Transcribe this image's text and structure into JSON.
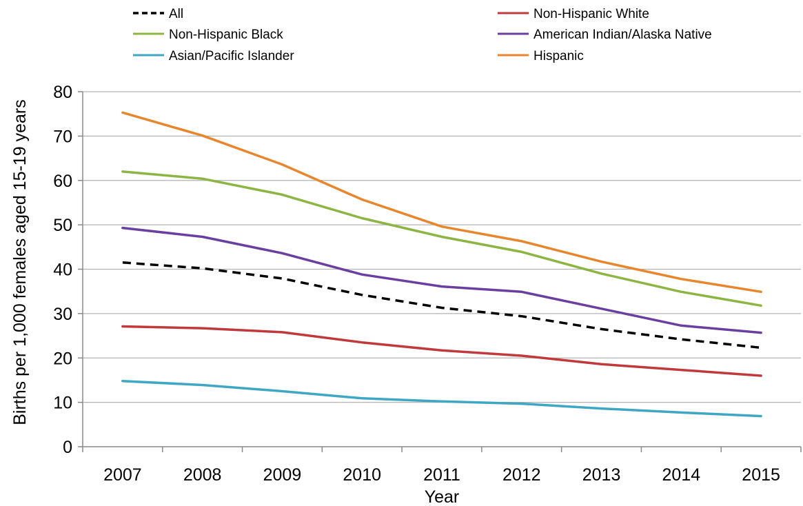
{
  "chart_data": {
    "type": "line",
    "title": "",
    "xlabel": "Year",
    "ylabel": "Births per 1,000 females aged 15-19 years",
    "x": [
      "2007",
      "2008",
      "2009",
      "2010",
      "2011",
      "2012",
      "2013",
      "2014",
      "2015"
    ],
    "ylim": [
      0,
      80
    ],
    "yticks": [
      0,
      10,
      20,
      30,
      40,
      50,
      60,
      70,
      80
    ],
    "grid": "horizontal",
    "legend_position": "top",
    "series": [
      {
        "name": "All",
        "color": "#000000",
        "style": "dashed",
        "values": [
          41.5,
          40.2,
          37.9,
          34.2,
          31.3,
          29.4,
          26.5,
          24.2,
          22.3
        ]
      },
      {
        "name": "Non-Hispanic White",
        "color": "#C0393B",
        "style": "solid",
        "values": [
          27.1,
          26.7,
          25.8,
          23.5,
          21.7,
          20.5,
          18.6,
          17.3,
          16.0
        ]
      },
      {
        "name": "Non-Hispanic Black",
        "color": "#8CB543",
        "style": "solid",
        "values": [
          62.0,
          60.4,
          56.8,
          51.5,
          47.3,
          43.9,
          39.0,
          34.9,
          31.8
        ]
      },
      {
        "name": "American Indian/Alaska Native",
        "color": "#6A3FA0",
        "style": "solid",
        "values": [
          49.3,
          47.3,
          43.6,
          38.8,
          36.1,
          34.9,
          31.1,
          27.3,
          25.7
        ]
      },
      {
        "name": "Asian/Pacific Islander",
        "color": "#3FA6C4",
        "style": "solid",
        "values": [
          14.8,
          13.9,
          12.5,
          10.9,
          10.2,
          9.7,
          8.6,
          7.7,
          6.9
        ]
      },
      {
        "name": "Hispanic",
        "color": "#E8862E",
        "style": "solid",
        "values": [
          75.3,
          70.1,
          63.6,
          55.7,
          49.6,
          46.3,
          41.7,
          37.8,
          34.9
        ]
      }
    ]
  }
}
